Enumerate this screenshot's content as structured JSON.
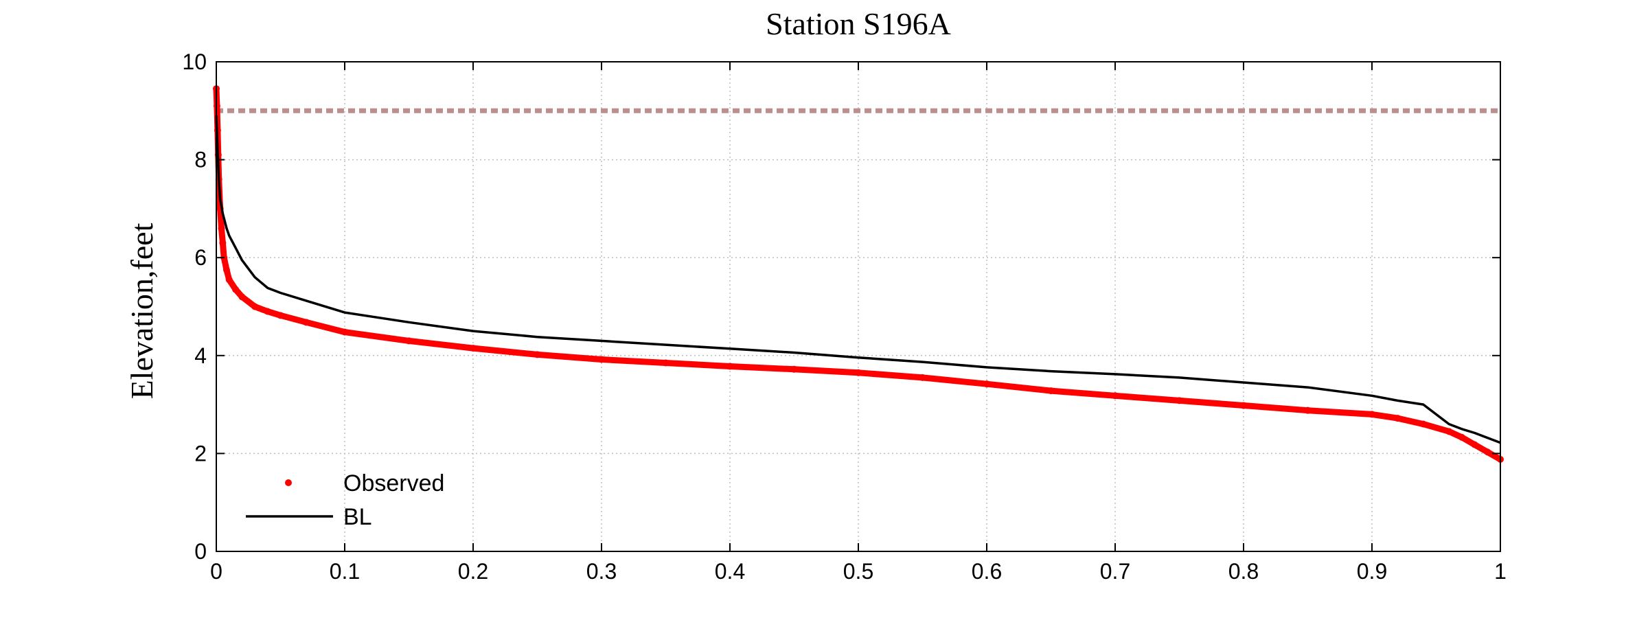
{
  "chart_data": {
    "type": "line",
    "title": "Station S196A",
    "xlabel": "",
    "ylabel": "Elevation,feet",
    "xlim": [
      0,
      1
    ],
    "ylim": [
      0,
      10
    ],
    "x_ticks": [
      "0",
      "0.1",
      "0.2",
      "0.3",
      "0.4",
      "0.5",
      "0.6",
      "0.7",
      "0.8",
      "0.9",
      "1"
    ],
    "y_ticks": [
      "0",
      "2",
      "4",
      "6",
      "8",
      "10"
    ],
    "grid": true,
    "legend_position": "bottom-left",
    "reference_line": {
      "y": 9.0,
      "color": "#bc8f8f",
      "style": "dashed"
    },
    "series": [
      {
        "name": "Observed",
        "style": "dots",
        "color": "#ff0000",
        "x": [
          0.0,
          0.0005,
          0.001,
          0.0015,
          0.002,
          0.003,
          0.004,
          0.005,
          0.006,
          0.008,
          0.01,
          0.015,
          0.02,
          0.03,
          0.04,
          0.05,
          0.07,
          0.1,
          0.15,
          0.2,
          0.25,
          0.3,
          0.35,
          0.4,
          0.45,
          0.5,
          0.55,
          0.6,
          0.65,
          0.7,
          0.75,
          0.8,
          0.85,
          0.9,
          0.92,
          0.94,
          0.96,
          0.97,
          0.98,
          0.99,
          1.0
        ],
        "y": [
          9.45,
          9.1,
          8.6,
          8.1,
          7.6,
          7.0,
          6.6,
          6.3,
          6.0,
          5.75,
          5.55,
          5.35,
          5.2,
          5.0,
          4.9,
          4.82,
          4.68,
          4.48,
          4.3,
          4.15,
          4.02,
          3.92,
          3.85,
          3.78,
          3.72,
          3.65,
          3.55,
          3.42,
          3.28,
          3.18,
          3.08,
          2.98,
          2.88,
          2.8,
          2.72,
          2.6,
          2.45,
          2.33,
          2.18,
          2.03,
          1.88
        ]
      },
      {
        "name": "BL",
        "style": "line",
        "color": "#000000",
        "x": [
          0.0,
          0.001,
          0.002,
          0.003,
          0.005,
          0.008,
          0.01,
          0.015,
          0.02,
          0.03,
          0.04,
          0.05,
          0.07,
          0.1,
          0.15,
          0.2,
          0.25,
          0.3,
          0.35,
          0.4,
          0.45,
          0.5,
          0.55,
          0.6,
          0.65,
          0.7,
          0.75,
          0.8,
          0.85,
          0.9,
          0.92,
          0.94,
          0.95,
          0.96,
          0.97,
          0.98,
          0.99,
          1.0
        ],
        "y": [
          8.9,
          8.2,
          7.6,
          7.2,
          6.9,
          6.6,
          6.45,
          6.2,
          5.95,
          5.6,
          5.38,
          5.28,
          5.12,
          4.88,
          4.68,
          4.5,
          4.38,
          4.3,
          4.22,
          4.14,
          4.06,
          3.96,
          3.87,
          3.76,
          3.68,
          3.62,
          3.55,
          3.45,
          3.35,
          3.18,
          3.08,
          3.0,
          2.8,
          2.6,
          2.5,
          2.42,
          2.32,
          2.22
        ]
      }
    ]
  }
}
